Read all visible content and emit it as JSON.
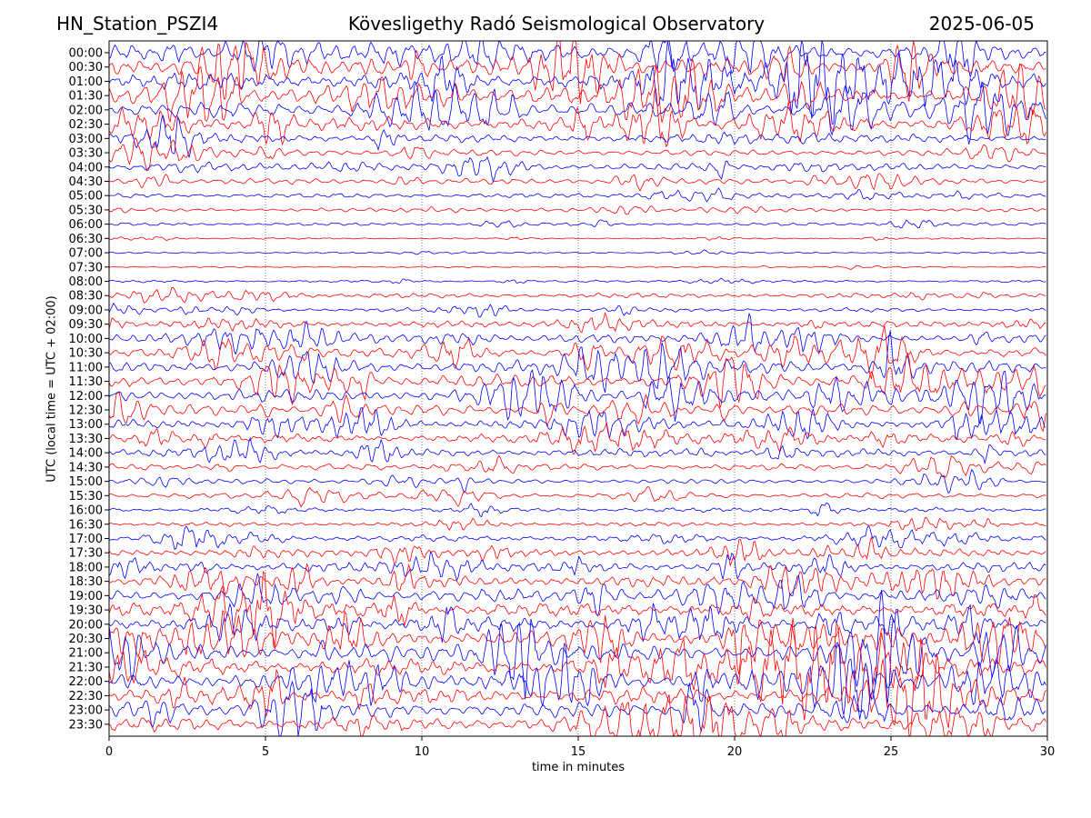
{
  "header": {
    "station": "HN_Station_PSZI4",
    "observatory": "Kövesligethy Radó Seismological Observatory",
    "date": "2025-06-05"
  },
  "chart_data": {
    "type": "line",
    "title": "Kövesligethy Radó Seismological Observatory",
    "xlabel": "time in minutes",
    "ylabel": "UTC (local time = UTC + 02:00)",
    "xlim": [
      0,
      30
    ],
    "x_ticks": [
      0,
      5,
      10,
      15,
      20,
      25,
      30
    ],
    "grid": "vertical dotted lines at x ticks",
    "trace_colors": [
      "#0000ff",
      "#ff0000"
    ],
    "rows": [
      {
        "label": "00:00",
        "activity": 1.0
      },
      {
        "label": "00:30",
        "activity": 1.0
      },
      {
        "label": "01:00",
        "activity": 1.0
      },
      {
        "label": "01:30",
        "activity": 1.0
      },
      {
        "label": "02:00",
        "activity": 0.95
      },
      {
        "label": "02:30",
        "activity": 0.85
      },
      {
        "label": "03:00",
        "activity": 0.45
      },
      {
        "label": "03:30",
        "activity": 0.35
      },
      {
        "label": "04:00",
        "activity": 0.4
      },
      {
        "label": "04:30",
        "activity": 0.3
      },
      {
        "label": "05:00",
        "activity": 0.25
      },
      {
        "label": "05:30",
        "activity": 0.18
      },
      {
        "label": "06:00",
        "activity": 0.15
      },
      {
        "label": "06:30",
        "activity": 0.05
      },
      {
        "label": "07:00",
        "activity": 0.05
      },
      {
        "label": "07:30",
        "activity": 0.04
      },
      {
        "label": "08:00",
        "activity": 0.1
      },
      {
        "label": "08:30",
        "activity": 0.25
      },
      {
        "label": "09:00",
        "activity": 0.2
      },
      {
        "label": "09:30",
        "activity": 0.35
      },
      {
        "label": "10:00",
        "activity": 0.5
      },
      {
        "label": "10:30",
        "activity": 0.6
      },
      {
        "label": "11:00",
        "activity": 0.75
      },
      {
        "label": "11:30",
        "activity": 0.8
      },
      {
        "label": "12:00",
        "activity": 0.75
      },
      {
        "label": "12:30",
        "activity": 0.65
      },
      {
        "label": "13:00",
        "activity": 0.55
      },
      {
        "label": "13:30",
        "activity": 0.45
      },
      {
        "label": "14:00",
        "activity": 0.45
      },
      {
        "label": "14:30",
        "activity": 0.35
      },
      {
        "label": "15:00",
        "activity": 0.25
      },
      {
        "label": "15:30",
        "activity": 0.3
      },
      {
        "label": "16:00",
        "activity": 0.25
      },
      {
        "label": "16:30",
        "activity": 0.2
      },
      {
        "label": "17:00",
        "activity": 0.35
      },
      {
        "label": "17:30",
        "activity": 0.45
      },
      {
        "label": "18:00",
        "activity": 0.55
      },
      {
        "label": "18:30",
        "activity": 0.65
      },
      {
        "label": "19:00",
        "activity": 0.75
      },
      {
        "label": "19:30",
        "activity": 0.85
      },
      {
        "label": "20:00",
        "activity": 0.9
      },
      {
        "label": "20:30",
        "activity": 0.95
      },
      {
        "label": "21:00",
        "activity": 1.0
      },
      {
        "label": "21:30",
        "activity": 1.0
      },
      {
        "label": "22:00",
        "activity": 1.0
      },
      {
        "label": "22:30",
        "activity": 0.95
      },
      {
        "label": "23:00",
        "activity": 0.9
      },
      {
        "label": "23:30",
        "activity": 0.85
      }
    ]
  }
}
